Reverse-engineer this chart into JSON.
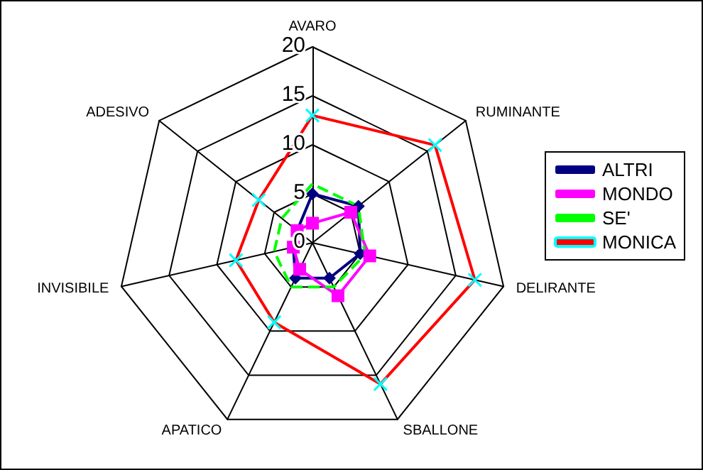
{
  "chart_data": {
    "type": "radar",
    "categories": [
      "AVARO",
      "RUMINANTE",
      "DELIRANTE",
      "SBALLONE",
      "APATICO",
      "INVISIBILE",
      "ADESIVO"
    ],
    "ylim": [
      0,
      20
    ],
    "yticks": [
      0,
      5,
      10,
      15,
      20
    ],
    "legend": "right",
    "grid": true,
    "series": [
      {
        "name": "ALTRI",
        "color": "#000080",
        "marker": "diamond",
        "values": [
          5,
          6,
          5,
          4,
          4,
          2,
          2
        ]
      },
      {
        "name": "MONDO",
        "color": "#ff00ff",
        "marker": "square",
        "values": [
          2,
          5,
          6,
          6,
          3,
          2,
          2
        ]
      },
      {
        "name": "SE'",
        "color": "#00ff00",
        "marker": "none",
        "line_style": "dashed",
        "values": [
          6,
          6,
          5.5,
          5,
          5,
          4,
          4
        ]
      },
      {
        "name": "MONICA",
        "color": "#ff0000",
        "marker": "cross",
        "values": [
          13,
          16,
          17,
          16,
          9,
          8,
          7
        ]
      }
    ]
  }
}
